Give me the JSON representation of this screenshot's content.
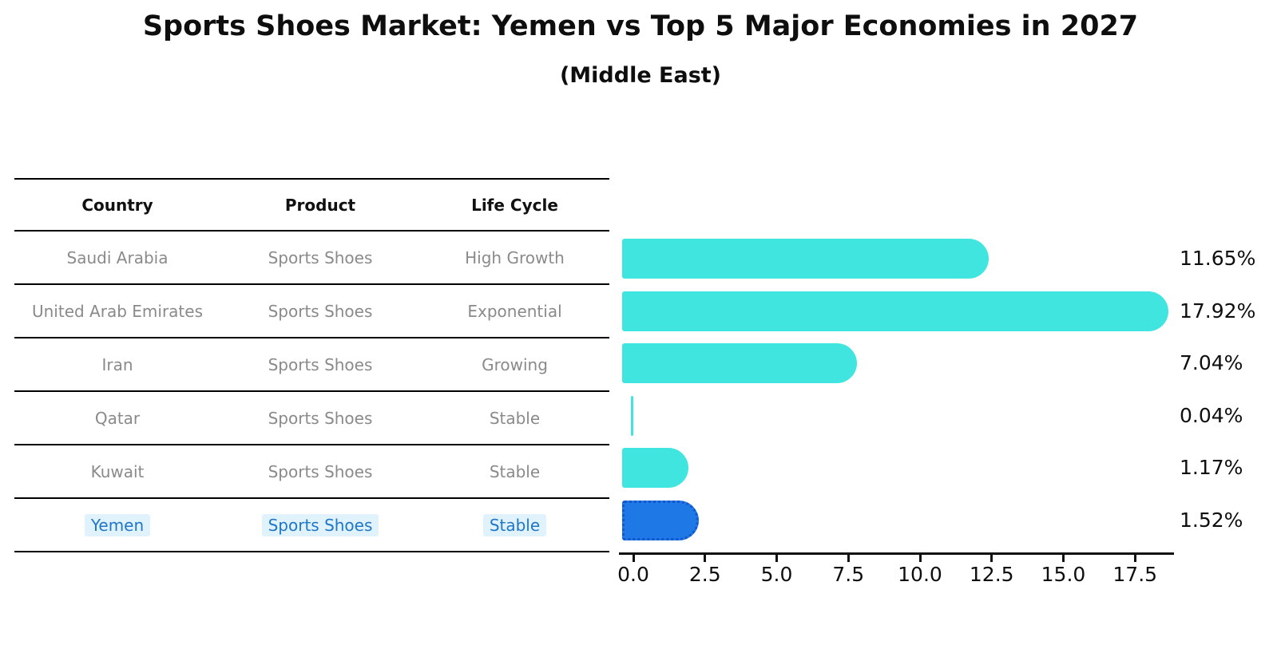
{
  "title": "Sports Shoes Market: Yemen vs Top 5 Major Economies in 2027",
  "subtitle": "(Middle East)",
  "table": {
    "headers": [
      "Country",
      "Product",
      "Life Cycle"
    ],
    "rows": [
      {
        "country": "Saudi Arabia",
        "product": "Sports Shoes",
        "life_cycle": "High Growth",
        "highlight": false
      },
      {
        "country": "United Arab Emirates",
        "product": "Sports Shoes",
        "life_cycle": "Exponential",
        "highlight": false
      },
      {
        "country": "Iran",
        "product": "Sports Shoes",
        "life_cycle": "Growing",
        "highlight": false
      },
      {
        "country": "Qatar",
        "product": "Sports Shoes",
        "life_cycle": "Stable",
        "highlight": false
      },
      {
        "country": "Kuwait",
        "product": "Sports Shoes",
        "life_cycle": "Stable",
        "highlight": false
      },
      {
        "country": "Yemen",
        "product": "Sports Shoes",
        "life_cycle": "Stable",
        "highlight": true
      }
    ]
  },
  "chart_data": {
    "type": "bar",
    "orientation": "horizontal",
    "title": "Sports Shoes Market: Yemen vs Top 5 Major Economies in 2027",
    "subtitle": "(Middle East)",
    "categories": [
      "Saudi Arabia",
      "United Arab Emirates",
      "Iran",
      "Qatar",
      "Kuwait",
      "Yemen"
    ],
    "values": [
      11.65,
      17.92,
      7.04,
      0.04,
      1.17,
      1.52
    ],
    "value_labels": [
      "11.65%",
      "17.92%",
      "7.04%",
      "0.04%",
      "1.17%",
      "1.52%"
    ],
    "unit": "%",
    "highlight_category": "Yemen",
    "highlight_index": 5,
    "x_tick_labels": [
      "0.0",
      "2.5",
      "5.0",
      "7.5",
      "10.0",
      "12.5",
      "15.0",
      "17.5"
    ],
    "xlim": [
      0,
      19
    ],
    "grid": false,
    "legend": false,
    "bar_color": "#40E5E0",
    "highlight_bar_color": "#1E78E6"
  },
  "colors": {
    "background": "#ffffff",
    "bar": "#40E5E0",
    "highlight_bar": "#1E78E6",
    "highlight_bar_border": "#1257cc",
    "row_text": "#8a8a8a",
    "header_text": "#111111",
    "highlight_text": "#1f77c8",
    "highlight_text_bg": "#e0f2fc",
    "axis": "#111111"
  }
}
